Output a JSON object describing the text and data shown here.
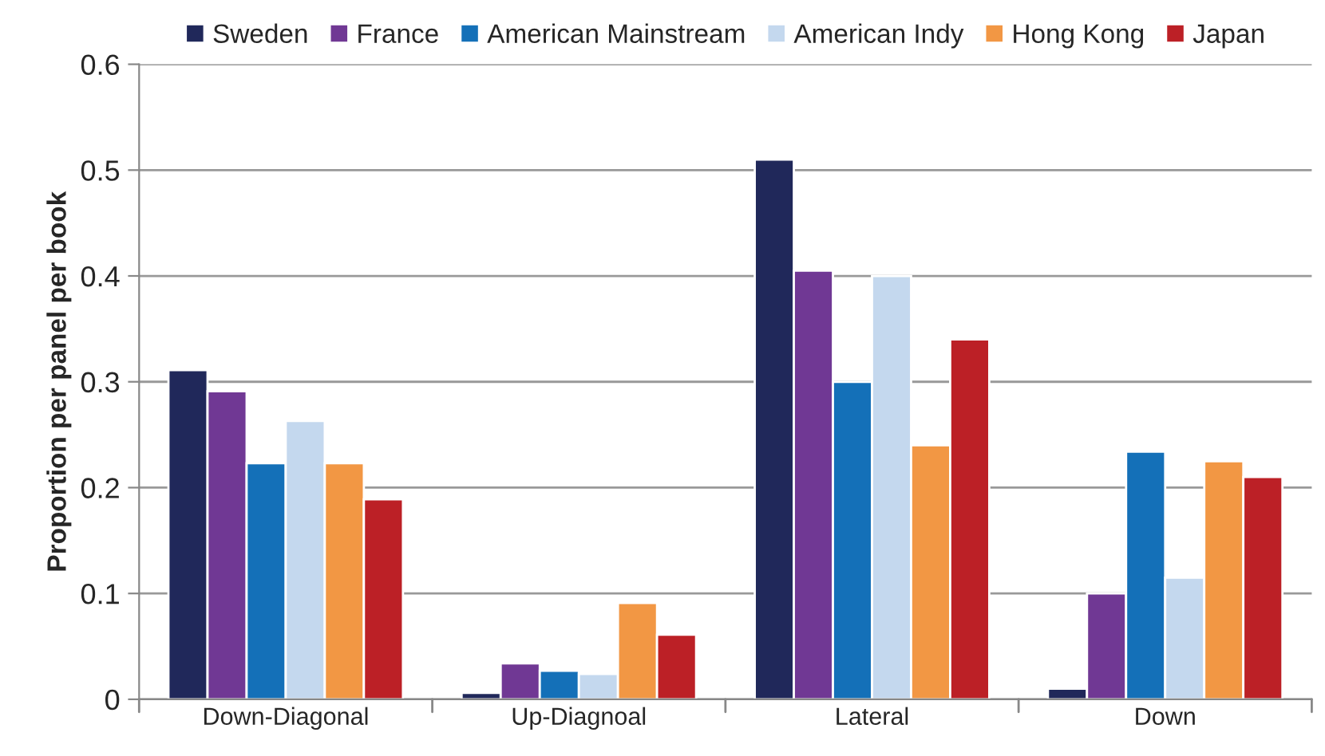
{
  "chart_data": {
    "type": "bar",
    "ylabel": "Proportion per panel per book",
    "categories": [
      "Down-Diagonal",
      "Up-Diagnoal",
      "Lateral",
      "Down"
    ],
    "series": [
      {
        "name": "Sweden",
        "color": "#20285a",
        "values": [
          0.311,
          0.006,
          0.51,
          0.01
        ]
      },
      {
        "name": "France",
        "color": "#703894",
        "values": [
          0.291,
          0.034,
          0.405,
          0.1
        ]
      },
      {
        "name": "American Mainstream",
        "color": "#1470b8",
        "values": [
          0.223,
          0.027,
          0.3,
          0.234
        ]
      },
      {
        "name": "American Indy",
        "color": "#c4d8ee",
        "values": [
          0.263,
          0.024,
          0.4,
          0.115
        ]
      },
      {
        "name": "Hong Kong",
        "color": "#f29744",
        "values": [
          0.223,
          0.091,
          0.24,
          0.225
        ]
      },
      {
        "name": "Japan",
        "color": "#bc2026",
        "values": [
          0.189,
          0.061,
          0.34,
          0.21
        ]
      }
    ],
    "ylim": [
      0,
      0.6
    ],
    "yticks": [
      0,
      0.1,
      0.2,
      0.3,
      0.4,
      0.5,
      0.6
    ],
    "grid": "y",
    "legend": "top"
  }
}
